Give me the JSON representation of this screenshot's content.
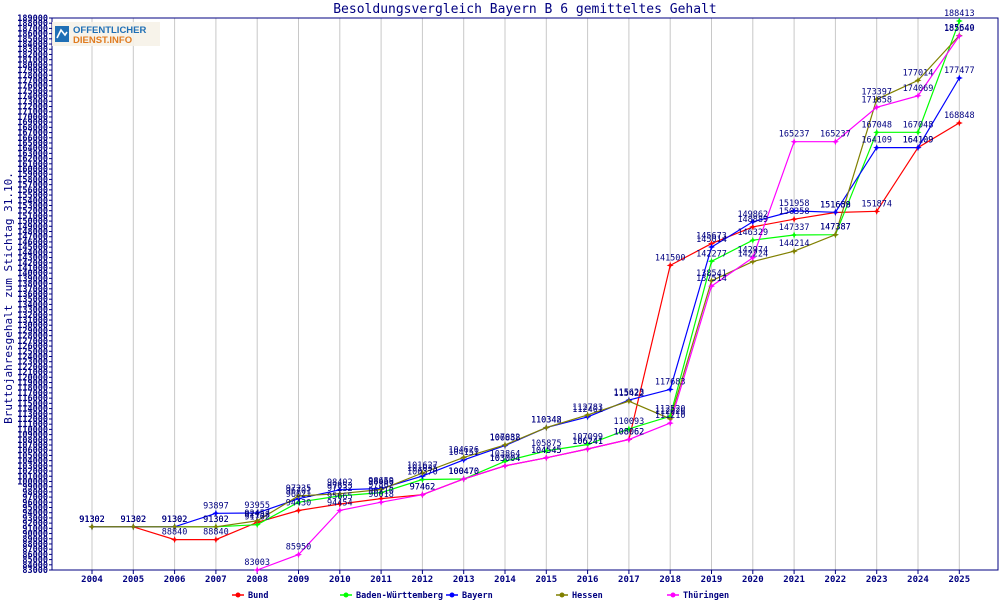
{
  "logo": {
    "line1": "OFFENTLICHER",
    "line2": "DIENST.INFO"
  },
  "chart_data": {
    "type": "line",
    "title": "Besoldungsvergleich Bayern B 6 gemitteltes Gehalt",
    "xlabel": "",
    "ylabel": "Bruttojahresgehalt zum Stichtag 31.10.",
    "ylim": [
      83000,
      189000
    ],
    "ytick_step": 1000,
    "x": [
      "2004",
      "2005",
      "2006",
      "2007",
      "2008",
      "2009",
      "2010",
      "2011",
      "2012",
      "2013",
      "2014",
      "2015",
      "2016",
      "2017",
      "2018",
      "2019",
      "2020",
      "2021",
      "2022",
      "2023",
      "2024",
      "2025"
    ],
    "legend_position": "bottom",
    "series": [
      {
        "name": "Bund",
        "color": "#ff0000",
        "values": [
          91302,
          91302,
          88840,
          88840,
          92158,
          94430,
          95665,
          96710,
          97462,
          100470,
          103004,
          104545,
          106241,
          108062,
          141500,
          145673,
          148889,
          150358,
          151658,
          151874,
          164109,
          168848
        ]
      },
      {
        "name": "Baden-Württemberg",
        "color": "#00ff00",
        "values": [
          91302,
          91302,
          91302,
          91302,
          91702,
          96021,
          97232,
          97862,
          100370,
          100470,
          103864,
          105875,
          107099,
          110093,
          112520,
          142277,
          146329,
          147337,
          147387,
          167048,
          167048,
          188413
        ]
      },
      {
        "name": "Bayern",
        "color": "#0000ff",
        "values": [
          91302,
          91302,
          91302,
          93897,
          93955,
          96701,
          98402,
          98659,
          101035,
          104151,
          106888,
          110348,
          112401,
          115623,
          117683,
          145014,
          149862,
          151958,
          151689,
          164109,
          164109,
          177477
        ]
      },
      {
        "name": "Hessen",
        "color": "#808000",
        "values": [
          91302,
          91302,
          91302,
          91302,
          92457,
          97235,
          97653,
          98466,
          101627,
          104626,
          107032,
          110342,
          112783,
          115422,
          112026,
          138541,
          142224,
          144214,
          147387,
          173397,
          177014,
          185640
        ]
      },
      {
        "name": "Thüringen",
        "color": "#ff00ff",
        "values": [
          null,
          null,
          null,
          null,
          83003,
          85950,
          94454,
          96018,
          97462,
          100470,
          103004,
          104545,
          106241,
          108062,
          111210,
          137514,
          142974,
          165237,
          165237,
          171858,
          174069,
          185549
        ]
      }
    ]
  }
}
